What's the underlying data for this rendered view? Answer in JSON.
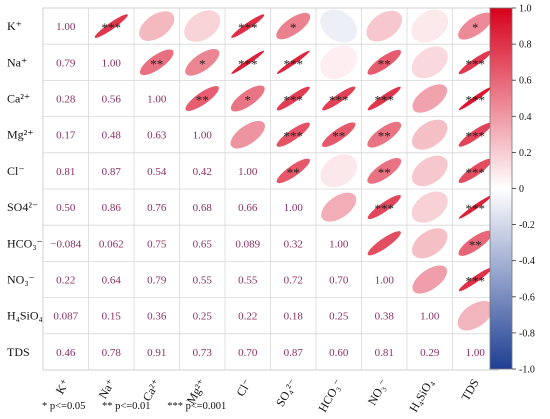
{
  "chart_data": {
    "type": "heatmap",
    "variables": [
      "K⁺",
      "Na⁺",
      "Ca²⁺",
      "Mg²⁺",
      "Cl⁻",
      "SO4²⁻",
      "HCO₃⁻",
      "NO₃⁻",
      "H₄SiO₄",
      "TDS"
    ],
    "x_labels": [
      "K⁺",
      "Na⁺",
      "Ca²⁺",
      "Mg²⁺",
      "Cl⁻",
      "SO₄²⁻",
      "HCO₃⁻",
      "NO₃⁻",
      "H₄SiO₄",
      "TDS"
    ],
    "matrix": [
      [
        1.0,
        0.79,
        0.28,
        0.17,
        0.81,
        0.5,
        -0.084,
        0.22,
        0.087,
        0.46
      ],
      [
        0.79,
        1.0,
        0.56,
        0.48,
        0.87,
        0.86,
        0.062,
        0.64,
        0.15,
        0.78
      ],
      [
        0.28,
        0.56,
        1.0,
        0.63,
        0.54,
        0.76,
        0.75,
        0.79,
        0.36,
        0.91
      ],
      [
        0.17,
        0.48,
        0.63,
        1.0,
        0.42,
        0.68,
        0.65,
        0.55,
        0.25,
        0.73
      ],
      [
        0.81,
        0.87,
        0.54,
        0.42,
        1.0,
        0.66,
        0.089,
        0.55,
        0.22,
        0.7
      ],
      [
        0.5,
        0.86,
        0.76,
        0.68,
        0.66,
        1.0,
        0.32,
        0.72,
        0.18,
        0.87
      ],
      [
        -0.084,
        0.062,
        0.75,
        0.65,
        0.089,
        0.32,
        1.0,
        0.7,
        0.25,
        0.6
      ],
      [
        0.22,
        0.64,
        0.79,
        0.55,
        0.55,
        0.72,
        0.7,
        1.0,
        0.38,
        0.81
      ],
      [
        0.087,
        0.15,
        0.36,
        0.25,
        0.22,
        0.18,
        0.25,
        0.38,
        1.0,
        0.29
      ],
      [
        0.46,
        0.78,
        0.91,
        0.73,
        0.7,
        0.87,
        0.6,
        0.81,
        0.29,
        1.0
      ]
    ],
    "lower_labels": [
      [],
      [
        "0.79"
      ],
      [
        "0.28",
        "0.56"
      ],
      [
        "0.17",
        "0.48",
        "0.63"
      ],
      [
        "0.81",
        "0.87",
        "0.54",
        "0.42"
      ],
      [
        "0.50",
        "0.86",
        "0.76",
        "0.68",
        "0.66"
      ],
      [
        "−0.084",
        "0.062",
        "0.75",
        "0.65",
        "0.089",
        "0.32"
      ],
      [
        "0.22",
        "0.64",
        "0.79",
        "0.55",
        "0.55",
        "0.72",
        "0.70"
      ],
      [
        "0.087",
        "0.15",
        "0.36",
        "0.25",
        "0.22",
        "0.18",
        "0.25",
        "0.38"
      ],
      [
        "0.46",
        "0.78",
        "0.91",
        "0.73",
        "0.70",
        "0.87",
        "0.60",
        "0.81",
        "0.29"
      ]
    ],
    "diagonal_label": "1.00",
    "significance": [
      [
        "",
        "***",
        "",
        "",
        "***",
        "*",
        "",
        "",
        "",
        "*"
      ],
      [
        "",
        "",
        "**",
        "*",
        "***",
        "***",
        "",
        "**",
        "",
        "***"
      ],
      [
        "",
        "",
        "",
        "**",
        "*",
        "***",
        "***",
        "***",
        "",
        "***"
      ],
      [
        "",
        "",
        "",
        "",
        "",
        "***",
        "**",
        "**",
        "",
        "***"
      ],
      [
        "",
        "",
        "",
        "",
        "",
        "**",
        "",
        "**",
        "",
        "***"
      ],
      [
        "",
        "",
        "",
        "",
        "",
        "",
        "",
        "***",
        "",
        "***"
      ],
      [
        "",
        "",
        "",
        "",
        "",
        "",
        "",
        "",
        "",
        "**"
      ],
      [
        "",
        "",
        "",
        "",
        "",
        "",
        "",
        "",
        "",
        "***"
      ],
      [
        "",
        "",
        "",
        "",
        "",
        "",
        "",
        "",
        "",
        ""
      ],
      [
        "",
        "",
        "",
        "",
        "",
        "",
        "",
        "",
        "",
        ""
      ]
    ],
    "colorbar": {
      "range": [
        -1.0,
        1.0
      ],
      "ticks": [
        "1.0",
        "0.8",
        "0.6",
        "0.4",
        "0.2",
        "0",
        "-0.2",
        "-0.4",
        "-0.6",
        "-0.8",
        "-1.0"
      ],
      "colors": {
        "negative": "#1f3f94",
        "zero": "#ffffff",
        "positive": "#d7001c"
      }
    },
    "label_color": "#8c2f63"
  },
  "significance_legend": [
    "* p<=0.05",
    "** p<=0.01",
    "*** p<=0.001"
  ]
}
